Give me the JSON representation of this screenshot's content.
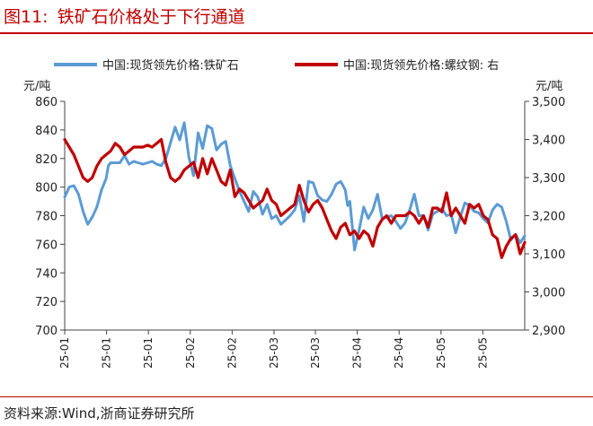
{
  "figure": {
    "label": "图11:",
    "title": "铁矿石价格处于下行通道",
    "source": "资料来源:Wind,浙商证券研究所"
  },
  "colors": {
    "title_red": "#c00000",
    "iron_ore_blue": "#5b9bd5",
    "rebar_red": "#c00000"
  },
  "chart_data": {
    "type": "line",
    "grid": false,
    "legend_position": "top",
    "left_axis": {
      "unit_label": "元/吨",
      "min": 700,
      "max": 860,
      "ticks": [
        700,
        720,
        740,
        760,
        780,
        800,
        820,
        840,
        860
      ]
    },
    "right_axis": {
      "unit_label": "元/吨",
      "min": 2900,
      "max": 3500,
      "ticks": [
        "2,900",
        "3,000",
        "3,100",
        "3,200",
        "3,300",
        "3,400",
        "3,500"
      ],
      "tick_values": [
        2900,
        3000,
        3100,
        3200,
        3300,
        3400,
        3500
      ]
    },
    "x_ticks": [
      "25-01",
      "25-01",
      "25-01",
      "25-02",
      "25-02",
      "25-03",
      "25-03",
      "25-04",
      "25-04",
      "25-05",
      "25-05"
    ],
    "x_tick_positions": [
      0,
      0.091,
      0.182,
      0.273,
      0.364,
      0.455,
      0.545,
      0.636,
      0.727,
      0.818,
      0.909
    ],
    "series": [
      {
        "name": "中国:现货领先价格:铁矿石",
        "legend_text": "中国:现货领先价格:铁矿石",
        "axis": "left",
        "color": "#5b9bd5",
        "x": [
          0,
          0.01,
          0.02,
          0.03,
          0.04,
          0.05,
          0.06,
          0.07,
          0.08,
          0.09,
          0.095,
          0.1,
          0.11,
          0.12,
          0.13,
          0.14,
          0.15,
          0.16,
          0.17,
          0.18,
          0.19,
          0.2,
          0.21,
          0.22,
          0.23,
          0.24,
          0.25,
          0.26,
          0.27,
          0.28,
          0.29,
          0.3,
          0.31,
          0.32,
          0.33,
          0.34,
          0.35,
          0.36,
          0.37,
          0.38,
          0.39,
          0.4,
          0.41,
          0.42,
          0.43,
          0.44,
          0.45,
          0.46,
          0.47,
          0.48,
          0.49,
          0.5,
          0.51,
          0.52,
          0.53,
          0.54,
          0.55,
          0.56,
          0.57,
          0.58,
          0.59,
          0.6,
          0.61,
          0.615,
          0.62,
          0.63,
          0.64,
          0.65,
          0.66,
          0.67,
          0.68,
          0.69,
          0.7,
          0.71,
          0.72,
          0.73,
          0.74,
          0.75,
          0.76,
          0.77,
          0.78,
          0.79,
          0.8,
          0.81,
          0.82,
          0.83,
          0.84,
          0.85,
          0.86,
          0.87,
          0.88,
          0.89,
          0.9,
          0.91,
          0.92,
          0.93,
          0.94,
          0.95,
          0.96,
          0.97,
          0.98,
          0.99,
          1.0
        ],
        "values": [
          793,
          800,
          801,
          795,
          783,
          774,
          779,
          786,
          798,
          806,
          815,
          817,
          817,
          817,
          822,
          816,
          818,
          817,
          816,
          817,
          818,
          816,
          815,
          820,
          831,
          842,
          833,
          845,
          821,
          808,
          838,
          827,
          843,
          841,
          826,
          830,
          832,
          815,
          806,
          797,
          790,
          783,
          797,
          793,
          781,
          788,
          778,
          780,
          774,
          777,
          780,
          784,
          794,
          776,
          804,
          803,
          794,
          791,
          790,
          795,
          802,
          804,
          798,
          787,
          790,
          756,
          770,
          786,
          778,
          784,
          795,
          778,
          779,
          780,
          776,
          771,
          775,
          784,
          795,
          780,
          780,
          770,
          781,
          783,
          785,
          780,
          781,
          768,
          779,
          789,
          787,
          783,
          782,
          778,
          775,
          784,
          788,
          786,
          776,
          763,
          767,
          761,
          766
        ]
      },
      {
        "name": "中国:现货领先价格:螺纹钢",
        "legend_text": "中国:现货领先价格:螺纹钢: 右",
        "axis": "right",
        "color": "#c00000",
        "x": [
          0,
          0.01,
          0.02,
          0.03,
          0.04,
          0.05,
          0.06,
          0.07,
          0.08,
          0.09,
          0.1,
          0.11,
          0.12,
          0.13,
          0.14,
          0.15,
          0.16,
          0.17,
          0.18,
          0.19,
          0.2,
          0.21,
          0.22,
          0.23,
          0.24,
          0.25,
          0.26,
          0.27,
          0.28,
          0.29,
          0.3,
          0.31,
          0.32,
          0.33,
          0.34,
          0.35,
          0.36,
          0.37,
          0.38,
          0.39,
          0.4,
          0.41,
          0.42,
          0.43,
          0.44,
          0.45,
          0.46,
          0.47,
          0.48,
          0.49,
          0.5,
          0.51,
          0.52,
          0.53,
          0.54,
          0.55,
          0.56,
          0.57,
          0.58,
          0.59,
          0.6,
          0.61,
          0.62,
          0.63,
          0.64,
          0.65,
          0.66,
          0.67,
          0.68,
          0.69,
          0.7,
          0.71,
          0.72,
          0.73,
          0.74,
          0.75,
          0.76,
          0.77,
          0.78,
          0.79,
          0.8,
          0.81,
          0.82,
          0.83,
          0.84,
          0.85,
          0.86,
          0.87,
          0.88,
          0.89,
          0.9,
          0.91,
          0.92,
          0.93,
          0.94,
          0.95,
          0.96,
          0.97,
          0.98,
          0.99,
          1.0
        ],
        "values": [
          3400,
          3380,
          3360,
          3330,
          3300,
          3290,
          3300,
          3330,
          3350,
          3360,
          3370,
          3390,
          3380,
          3360,
          3370,
          3380,
          3380,
          3380,
          3385,
          3380,
          3390,
          3400,
          3340,
          3300,
          3290,
          3300,
          3320,
          3330,
          3340,
          3300,
          3350,
          3310,
          3350,
          3320,
          3290,
          3280,
          3320,
          3250,
          3270,
          3260,
          3240,
          3220,
          3230,
          3240,
          3270,
          3240,
          3230,
          3200,
          3210,
          3220,
          3230,
          3280,
          3240,
          3210,
          3230,
          3240,
          3220,
          3190,
          3160,
          3140,
          3170,
          3180,
          3150,
          3160,
          3140,
          3160,
          3150,
          3120,
          3170,
          3190,
          3200,
          3180,
          3200,
          3200,
          3200,
          3210,
          3200,
          3180,
          3200,
          3170,
          3220,
          3220,
          3210,
          3260,
          3200,
          3220,
          3200,
          3180,
          3230,
          3220,
          3230,
          3200,
          3190,
          3150,
          3140,
          3090,
          3120,
          3140,
          3150,
          3100,
          3130
        ]
      }
    ]
  }
}
